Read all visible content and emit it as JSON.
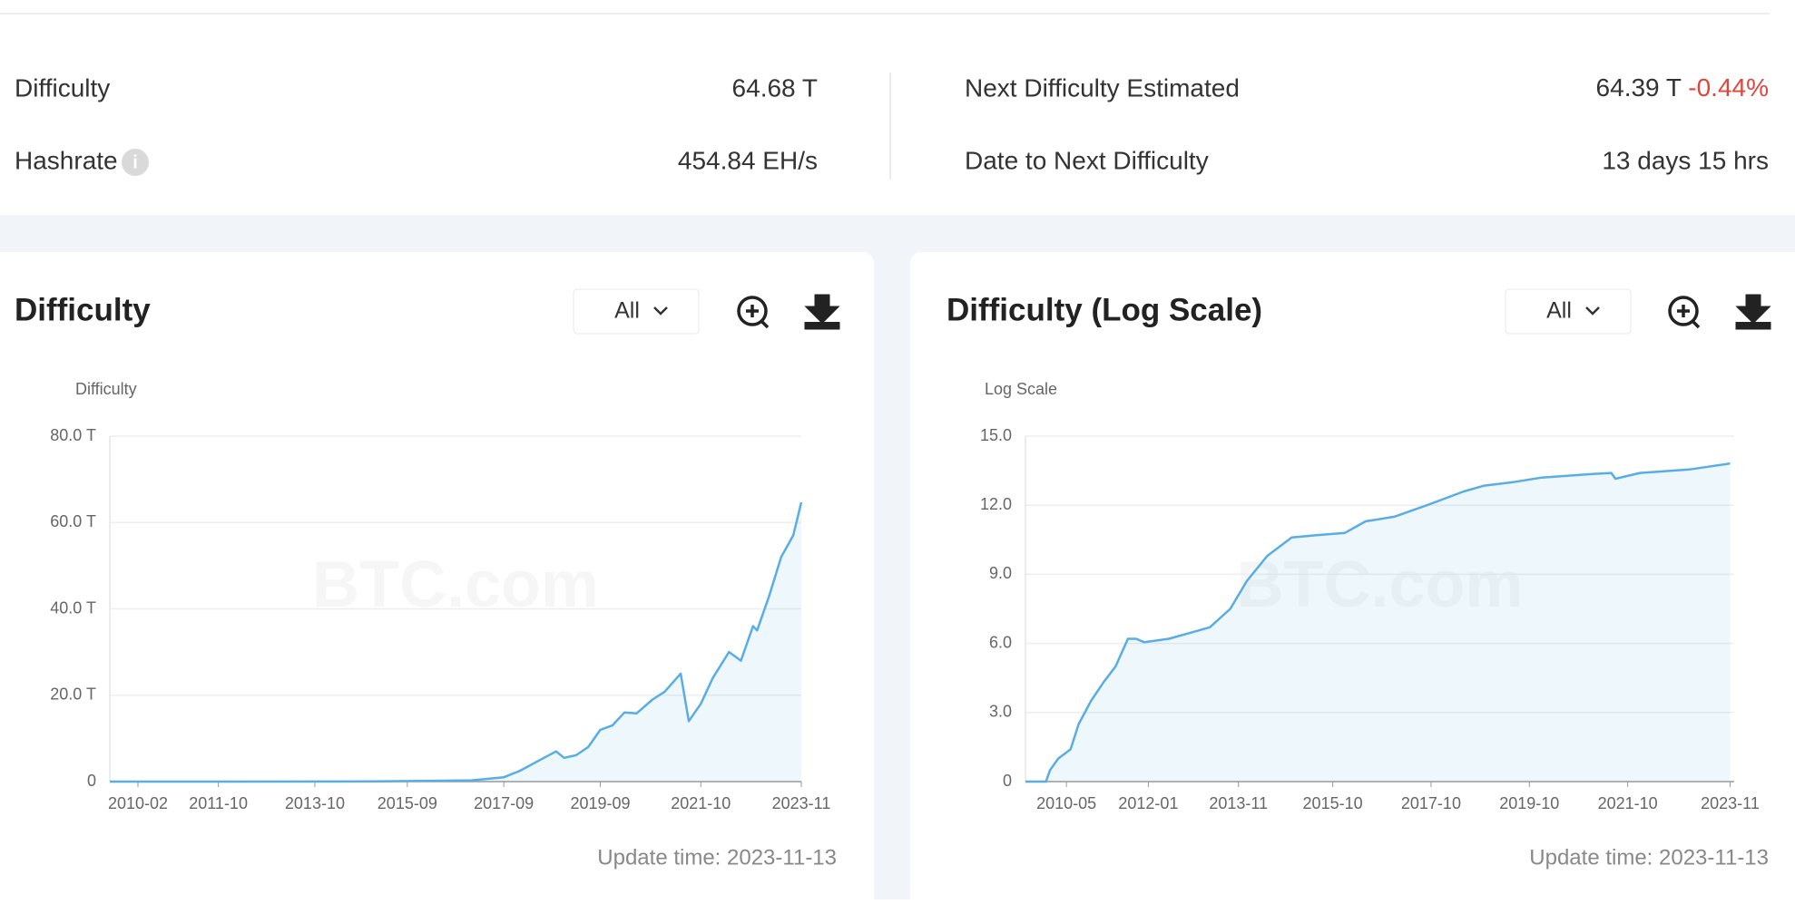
{
  "stats": {
    "difficulty": {
      "label": "Difficulty",
      "value": "64.68 T"
    },
    "hashrate": {
      "label": "Hashrate",
      "value": "454.84 EH/s"
    },
    "next_difficulty": {
      "label": "Next Difficulty Estimated",
      "value": "64.39 T",
      "change": "-0.44%"
    },
    "date_to_next": {
      "label": "Date to Next Difficulty",
      "value": "13 days 15 hrs"
    }
  },
  "chart_data": [
    {
      "type": "area",
      "title": "Difficulty",
      "range_option": "All",
      "y_label": "Difficulty",
      "watermark": "BTC.com",
      "footer": "Update time: 2023-11-13",
      "color": "#58ade6",
      "xlim": [
        "2009-07",
        "2023-11"
      ],
      "xticks": [
        "2010-02",
        "2011-10",
        "2013-10",
        "2015-09",
        "2017-09",
        "2019-09",
        "2021-10",
        "2023-11"
      ],
      "ylim": [
        0,
        80
      ],
      "yticks": [
        0,
        {
          "value": 20,
          "label": "20.0 T"
        },
        {
          "value": 40,
          "label": "40.0 T"
        },
        {
          "value": 60,
          "label": "60.0 T"
        },
        {
          "value": 80,
          "label": "80.0 T"
        }
      ],
      "grid": true,
      "series": [
        {
          "name": "Difficulty",
          "x": [
            "2009-07",
            "2012-01",
            "2015-01",
            "2016-06",
            "2017-01",
            "2017-09",
            "2018-01",
            "2018-06",
            "2018-10",
            "2018-12",
            "2019-03",
            "2019-06",
            "2019-09",
            "2019-12",
            "2020-03",
            "2020-06",
            "2020-10",
            "2021-01",
            "2021-05",
            "2021-07",
            "2021-10",
            "2022-01",
            "2022-05",
            "2022-08",
            "2022-11",
            "2022-12",
            "2023-03",
            "2023-06",
            "2023-09",
            "2023-11"
          ],
          "values": [
            0,
            0.01,
            0.04,
            0.2,
            0.3,
            1,
            2.5,
            5,
            7,
            5.5,
            6.1,
            8,
            12,
            13,
            16,
            15.8,
            19,
            20.8,
            25,
            14,
            18,
            24,
            30,
            28,
            36,
            35,
            43,
            52,
            57,
            64.68
          ]
        }
      ]
    },
    {
      "type": "area",
      "title": "Difficulty (Log Scale)",
      "range_option": "All",
      "y_label": "Log Scale",
      "watermark": "BTC.com",
      "footer": "Update time: 2023-11-13",
      "color": "#58ade6",
      "xlim": [
        "2009-07",
        "2023-12"
      ],
      "xticks": [
        "2010-05",
        "2012-01",
        "2013-11",
        "2015-10",
        "2017-10",
        "2019-10",
        "2021-10",
        "2023-11"
      ],
      "ylim": [
        0,
        15
      ],
      "yticks": [
        0,
        {
          "value": 3,
          "label": "3.0"
        },
        {
          "value": 6,
          "label": "6.0"
        },
        {
          "value": 9,
          "label": "9.0"
        },
        {
          "value": 12,
          "label": "12.0"
        },
        {
          "value": 15,
          "label": "15.0"
        }
      ],
      "grid": true,
      "series": [
        {
          "name": "Log Scale",
          "x": [
            "2009-07",
            "2009-12",
            "2010-01",
            "2010-03",
            "2010-06",
            "2010-08",
            "2010-11",
            "2011-02",
            "2011-05",
            "2011-08",
            "2011-10",
            "2011-12",
            "2012-06",
            "2012-12",
            "2013-04",
            "2013-09",
            "2014-01",
            "2014-06",
            "2014-12",
            "2015-06",
            "2016-01",
            "2016-06",
            "2017-01",
            "2017-09",
            "2018-06",
            "2018-11",
            "2019-06",
            "2020-01",
            "2021-01",
            "2021-06",
            "2021-07",
            "2022-01",
            "2023-01",
            "2023-11"
          ],
          "values": [
            0,
            0,
            0.5,
            1.0,
            1.4,
            2.5,
            3.5,
            4.3,
            5.0,
            6.2,
            6.2,
            6.05,
            6.2,
            6.5,
            6.7,
            7.5,
            8.7,
            9.8,
            10.6,
            10.7,
            10.8,
            11.3,
            11.5,
            12.0,
            12.6,
            12.85,
            13.0,
            13.2,
            13.35,
            13.4,
            13.15,
            13.4,
            13.55,
            13.81
          ]
        }
      ]
    }
  ]
}
